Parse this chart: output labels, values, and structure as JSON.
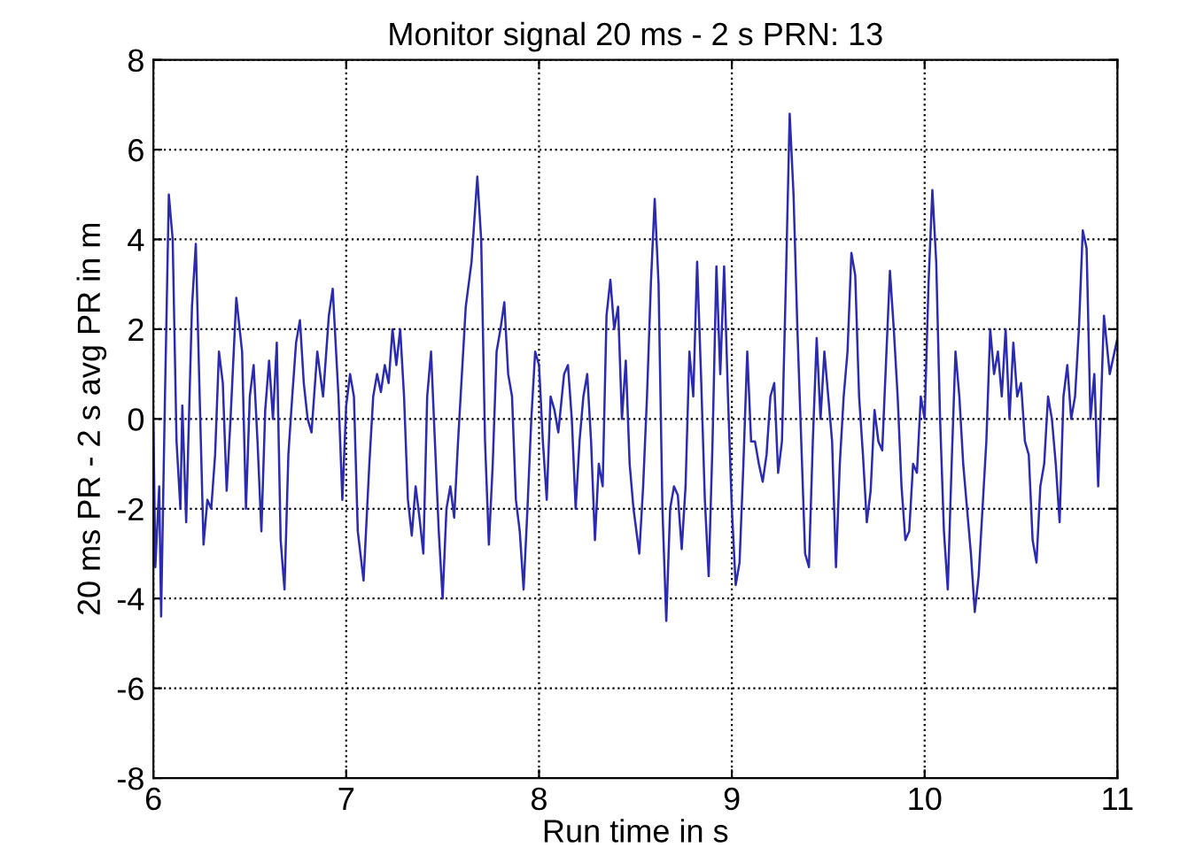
{
  "chart_data": {
    "type": "line",
    "title": "Monitor signal 20 ms - 2 s PRN: 13",
    "xlabel": "Run time in s",
    "ylabel": "20 ms PR - 2 s avg PR in m",
    "xlim": [
      6,
      11
    ],
    "ylim": [
      -8,
      8
    ],
    "xticks": [
      6,
      7,
      8,
      9,
      10,
      11
    ],
    "yticks": [
      -8,
      -6,
      -4,
      -2,
      0,
      2,
      4,
      6,
      8
    ],
    "grid": true,
    "line_style": "solid",
    "marker": "none",
    "series": [
      {
        "color": "#2b2bb0",
        "x": [
          6.0,
          6.01,
          6.03,
          6.04,
          6.06,
          6.08,
          6.1,
          6.12,
          6.14,
          6.15,
          6.17,
          6.2,
          6.22,
          6.24,
          6.26,
          6.28,
          6.3,
          6.32,
          6.34,
          6.36,
          6.38,
          6.4,
          6.43,
          6.46,
          6.48,
          6.5,
          6.52,
          6.54,
          6.56,
          6.58,
          6.6,
          6.62,
          6.64,
          6.66,
          6.68,
          6.7,
          6.72,
          6.74,
          6.76,
          6.78,
          6.8,
          6.82,
          6.85,
          6.88,
          6.91,
          6.93,
          6.96,
          6.98,
          7.0,
          7.02,
          7.04,
          7.06,
          7.09,
          7.12,
          7.14,
          7.16,
          7.18,
          7.2,
          7.22,
          7.24,
          7.26,
          7.28,
          7.3,
          7.32,
          7.34,
          7.36,
          7.38,
          7.4,
          7.42,
          7.44,
          7.46,
          7.48,
          7.5,
          7.52,
          7.54,
          7.56,
          7.58,
          7.6,
          7.62,
          7.65,
          7.68,
          7.7,
          7.72,
          7.74,
          7.76,
          7.78,
          7.8,
          7.82,
          7.84,
          7.86,
          7.88,
          7.9,
          7.92,
          7.94,
          7.96,
          7.98,
          8.0,
          8.02,
          8.04,
          8.06,
          8.08,
          8.1,
          8.13,
          8.15,
          8.17,
          8.19,
          8.21,
          8.23,
          8.25,
          8.27,
          8.29,
          8.31,
          8.33,
          8.35,
          8.37,
          8.39,
          8.41,
          8.43,
          8.45,
          8.47,
          8.49,
          8.52,
          8.54,
          8.56,
          8.58,
          8.6,
          8.62,
          8.64,
          8.66,
          8.68,
          8.7,
          8.72,
          8.74,
          8.76,
          8.78,
          8.8,
          8.82,
          8.84,
          8.86,
          8.88,
          8.9,
          8.92,
          8.94,
          8.96,
          8.98,
          9.0,
          9.02,
          9.04,
          9.06,
          9.08,
          9.1,
          9.12,
          9.14,
          9.16,
          9.18,
          9.2,
          9.22,
          9.24,
          9.26,
          9.28,
          9.3,
          9.32,
          9.34,
          9.36,
          9.38,
          9.4,
          9.42,
          9.44,
          9.46,
          9.48,
          9.5,
          9.52,
          9.54,
          9.56,
          9.58,
          9.6,
          9.62,
          9.64,
          9.66,
          9.68,
          9.7,
          9.72,
          9.74,
          9.76,
          9.78,
          9.8,
          9.82,
          9.84,
          9.86,
          9.88,
          9.9,
          9.92,
          9.94,
          9.96,
          9.98,
          10.0,
          10.02,
          10.04,
          10.06,
          10.08,
          10.1,
          10.12,
          10.14,
          10.16,
          10.18,
          10.2,
          10.22,
          10.24,
          10.26,
          10.28,
          10.3,
          10.32,
          10.34,
          10.36,
          10.38,
          10.4,
          10.42,
          10.44,
          10.46,
          10.48,
          10.5,
          10.52,
          10.54,
          10.56,
          10.58,
          10.6,
          10.62,
          10.64,
          10.66,
          10.68,
          10.7,
          10.72,
          10.74,
          10.76,
          10.78,
          10.8,
          10.82,
          10.84,
          10.86,
          10.88,
          10.9,
          10.93,
          10.96,
          11.0
        ],
        "values": [
          -0.1,
          -3.3,
          -1.5,
          -4.4,
          0.5,
          5.0,
          4.0,
          -0.5,
          -2.0,
          0.3,
          -2.3,
          2.5,
          3.9,
          0.5,
          -2.8,
          -1.8,
          -2.0,
          -0.8,
          1.5,
          0.8,
          -1.6,
          0.0,
          2.7,
          1.5,
          -2.0,
          0.5,
          1.2,
          -0.5,
          -2.5,
          0.2,
          1.3,
          0.0,
          1.7,
          -2.7,
          -3.8,
          -0.8,
          0.5,
          1.7,
          2.2,
          0.8,
          0.0,
          -0.3,
          1.5,
          0.5,
          2.3,
          2.9,
          0.5,
          -1.8,
          0.3,
          1.0,
          0.5,
          -2.5,
          -3.6,
          -1.0,
          0.5,
          1.0,
          0.6,
          1.2,
          0.8,
          2.0,
          1.2,
          2.0,
          0.5,
          -1.8,
          -2.6,
          -1.5,
          -2.2,
          -3.0,
          0.5,
          1.5,
          -0.5,
          -2.5,
          -4.0,
          -2.0,
          -1.5,
          -2.2,
          -0.5,
          1.0,
          2.5,
          3.5,
          5.4,
          4.0,
          -0.5,
          -2.8,
          -1.0,
          1.5,
          2.0,
          2.6,
          1.0,
          0.5,
          -1.8,
          -2.5,
          -3.8,
          -2.0,
          0.0,
          1.5,
          1.2,
          -0.5,
          -1.8,
          0.5,
          0.2,
          -0.3,
          1.0,
          1.2,
          0.0,
          -2.0,
          -0.5,
          0.5,
          1.0,
          -0.5,
          -2.7,
          -1.0,
          -1.5,
          2.3,
          3.1,
          2.0,
          2.5,
          0.0,
          1.3,
          -1.0,
          -2.0,
          -3.0,
          -1.5,
          0.5,
          3.0,
          4.9,
          3.0,
          -2.0,
          -4.5,
          -2.0,
          -1.5,
          -1.7,
          -2.9,
          -1.5,
          1.5,
          0.5,
          3.5,
          1.0,
          -1.8,
          -3.5,
          -0.5,
          3.4,
          1.0,
          3.4,
          0.5,
          -2.0,
          -3.7,
          -3.2,
          -1.0,
          1.5,
          -0.5,
          -0.5,
          -1.0,
          -1.4,
          -0.8,
          0.5,
          0.8,
          -1.2,
          -0.5,
          3.0,
          6.8,
          5.0,
          2.0,
          -0.5,
          -3.0,
          -3.3,
          -0.5,
          1.8,
          0.0,
          1.5,
          0.5,
          -0.5,
          -3.3,
          -1.0,
          0.5,
          1.5,
          3.7,
          3.2,
          0.5,
          -0.8,
          -2.3,
          -1.6,
          0.2,
          -0.5,
          -0.7,
          1.3,
          3.3,
          2.0,
          0.5,
          -1.5,
          -2.7,
          -2.5,
          -1.0,
          -1.2,
          0.5,
          0.0,
          3.0,
          5.1,
          3.5,
          0.0,
          -2.5,
          -3.8,
          -1.0,
          1.5,
          0.5,
          -1.0,
          -2.0,
          -3.0,
          -4.3,
          -3.5,
          -2.0,
          -0.5,
          2.0,
          1.0,
          1.5,
          0.5,
          2.0,
          0.0,
          1.7,
          0.5,
          0.8,
          -0.5,
          -0.8,
          -2.7,
          -3.2,
          -1.5,
          -1.0,
          0.5,
          0.0,
          -1.0,
          -2.3,
          0.5,
          1.2,
          0.0,
          0.5,
          2.0,
          4.2,
          3.8,
          0.0,
          1.0,
          -1.5,
          2.3,
          1.0,
          1.8
        ]
      }
    ]
  }
}
